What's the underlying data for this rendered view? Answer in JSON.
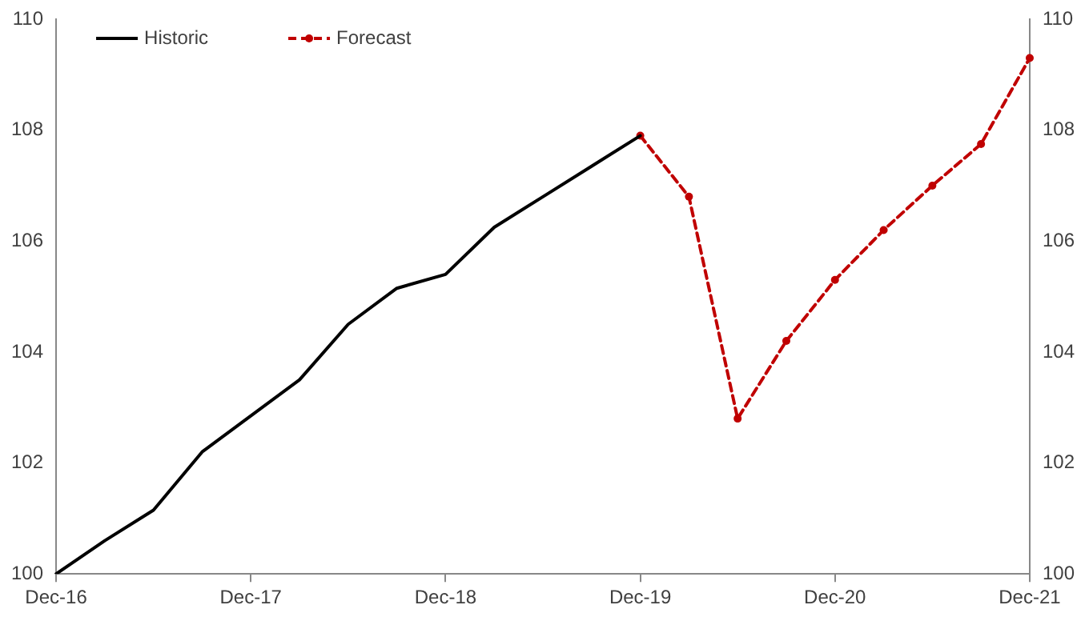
{
  "chart_data": {
    "type": "line",
    "categories": [
      "Dec-16",
      null,
      null,
      null,
      "Dec-17",
      null,
      null,
      null,
      "Dec-18",
      null,
      null,
      null,
      "Dec-19",
      null,
      null,
      null,
      "Dec-20",
      null,
      null,
      null,
      "Dec-21"
    ],
    "series": [
      {
        "name": "Historic",
        "color": "#000000",
        "line_style": "solid",
        "marker": "none",
        "values": [
          100.0,
          100.6,
          101.15,
          102.2,
          102.85,
          103.5,
          104.5,
          105.15,
          105.4,
          106.25,
          106.8,
          107.35,
          107.9,
          null,
          null,
          null,
          null,
          null,
          null,
          null,
          null
        ]
      },
      {
        "name": "Forecast",
        "color": "#c00000",
        "line_style": "dashed",
        "marker": "circle",
        "values": [
          null,
          null,
          null,
          null,
          null,
          null,
          null,
          null,
          null,
          null,
          null,
          null,
          107.9,
          106.8,
          102.8,
          104.2,
          105.3,
          106.2,
          107.0,
          107.75,
          109.3
        ]
      }
    ],
    "ylim": [
      100,
      110
    ],
    "yticks": [
      100,
      102,
      104,
      106,
      108,
      110
    ],
    "y2lim": [
      100,
      110
    ],
    "y2ticks": [
      100,
      102,
      104,
      106,
      108,
      110
    ],
    "grid": false,
    "legend": "top left"
  }
}
